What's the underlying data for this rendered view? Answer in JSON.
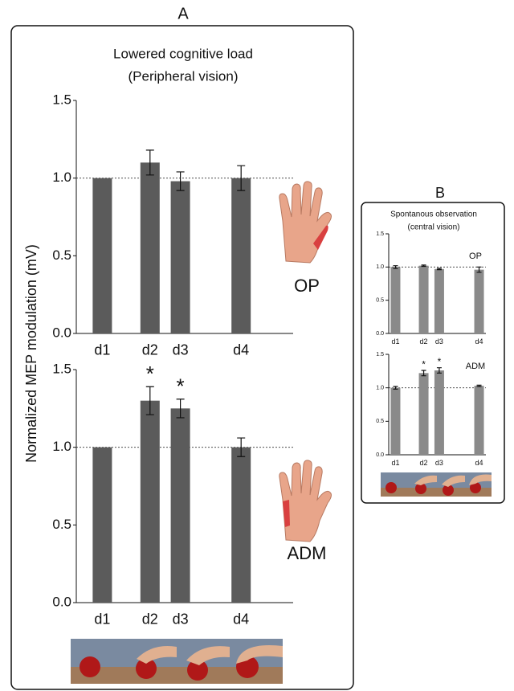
{
  "panels": [
    {
      "label": "A",
      "title": "Lowered cognitive load",
      "subtitle": "(Peripheral vision)",
      "ylabel": "Normalized MEP modulation (mV)"
    },
    {
      "label": "B",
      "title": "Spontanous observation",
      "subtitle": "(central vision)"
    }
  ],
  "chart_data": [
    {
      "type": "bar",
      "muscle": "OP",
      "categories": [
        "d1",
        "d2",
        "d3",
        "d4"
      ],
      "values": [
        1.0,
        1.1,
        0.98,
        1.0
      ],
      "errors": [
        0,
        0.08,
        0.06,
        0.08
      ],
      "color": "#5b5b5b",
      "ylim": [
        0,
        1.5
      ],
      "yticks": [
        {
          "value": 0,
          "label": "0.0"
        },
        {
          "value": 0.5,
          "label": "0.5"
        },
        {
          "value": 1,
          "label": "1.0"
        },
        {
          "value": 1.5,
          "label": "1.5"
        }
      ],
      "reference_line": 1.0
    },
    {
      "type": "bar",
      "muscle": "ADM",
      "categories": [
        "d1",
        "d2",
        "d3",
        "d4"
      ],
      "values": [
        1.0,
        1.3,
        1.25,
        1.0
      ],
      "errors": [
        0,
        0.09,
        0.06,
        0.06
      ],
      "significance": [
        null,
        "*",
        "*",
        null
      ],
      "color": "#5b5b5b",
      "ylim": [
        0,
        1.5
      ],
      "yticks": [
        {
          "value": 0,
          "label": "0.0"
        },
        {
          "value": 0.5,
          "label": "0.5"
        },
        {
          "value": 1,
          "label": "1.0"
        },
        {
          "value": 1.5,
          "label": "1.5"
        }
      ],
      "reference_line": 1.0
    },
    {
      "type": "bar",
      "muscle": "OP",
      "categories": [
        "d1",
        "d2",
        "d3",
        "d4"
      ],
      "values": [
        1.0,
        1.02,
        0.97,
        0.96
      ],
      "errors": [
        0.02,
        0.01,
        0.01,
        0.04
      ],
      "color": "#8a8a8a",
      "ylim": [
        0,
        1.5
      ],
      "yticks": [
        {
          "value": 0,
          "label": "0.0"
        },
        {
          "value": 0.5,
          "label": "0.5"
        },
        {
          "value": 1,
          "label": "1.0"
        },
        {
          "value": 1.5,
          "label": "1.5"
        }
      ],
      "reference_line": 1.0
    },
    {
      "type": "bar",
      "muscle": "ADM",
      "categories": [
        "d1",
        "d2",
        "d3",
        "d4"
      ],
      "values": [
        1.0,
        1.22,
        1.26,
        1.03
      ],
      "errors": [
        0.02,
        0.04,
        0.04,
        0.01
      ],
      "significance": [
        null,
        "*",
        "*",
        null
      ],
      "color": "#8a8a8a",
      "ylim": [
        0,
        1.5
      ],
      "yticks": [
        {
          "value": 0,
          "label": "0.0"
        },
        {
          "value": 0.5,
          "label": "0.5"
        },
        {
          "value": 1,
          "label": "1.0"
        },
        {
          "value": 1.5,
          "label": "1.5"
        }
      ],
      "reference_line": 1.0
    }
  ]
}
